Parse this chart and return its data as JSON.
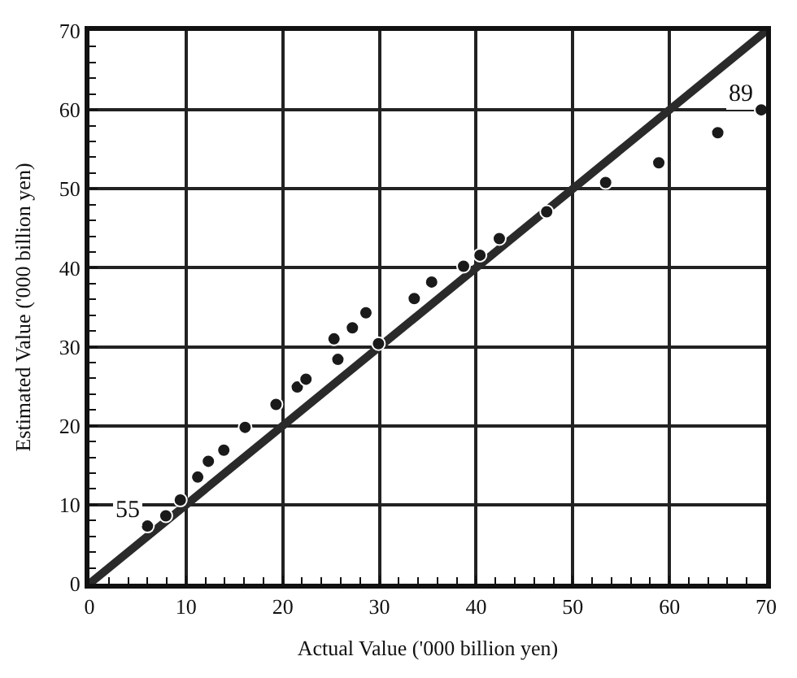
{
  "chart_data": {
    "type": "scatter",
    "xlabel": "Actual Value ('000 billion yen)",
    "ylabel": "Estimated Value ('000 billion yen)",
    "xlim": [
      0,
      70
    ],
    "ylim": [
      0,
      70
    ],
    "xticks": [
      0,
      10,
      20,
      30,
      40,
      50,
      60,
      70
    ],
    "yticks": [
      0,
      10,
      20,
      30,
      40,
      50,
      60,
      70
    ],
    "grid": true,
    "marker": "circle",
    "series": [
      {
        "color": "#1a1a1a",
        "x": [
          6,
          7.9,
          9.4,
          11.2,
          12.3,
          13.9,
          16.1,
          19.3,
          21.5,
          22.4,
          25.7,
          25.3,
          27.2,
          28.6,
          29.9,
          33.6,
          35.4,
          38.7,
          40.4,
          42.4,
          47.3,
          53.4,
          58.9,
          65,
          69.5
        ],
        "values": [
          7.3,
          8.6,
          10.6,
          13.5,
          15.5,
          16.9,
          19.8,
          22.7,
          24.9,
          25.9,
          28.4,
          31,
          32.4,
          34.3,
          30.4,
          36.1,
          38.2,
          40.2,
          41.6,
          43.7,
          47.1,
          50.8,
          53.3,
          57.1,
          60
        ]
      },
      {
        "type": "line",
        "color": "#2a2a2a",
        "x": [
          0,
          70
        ],
        "values": [
          0,
          70
        ],
        "marker": "none"
      }
    ],
    "annotations": [
      {
        "text": "55",
        "x": 6,
        "y": 7.3
      },
      {
        "text": "89",
        "x": 69.5,
        "y": 60
      }
    ]
  }
}
